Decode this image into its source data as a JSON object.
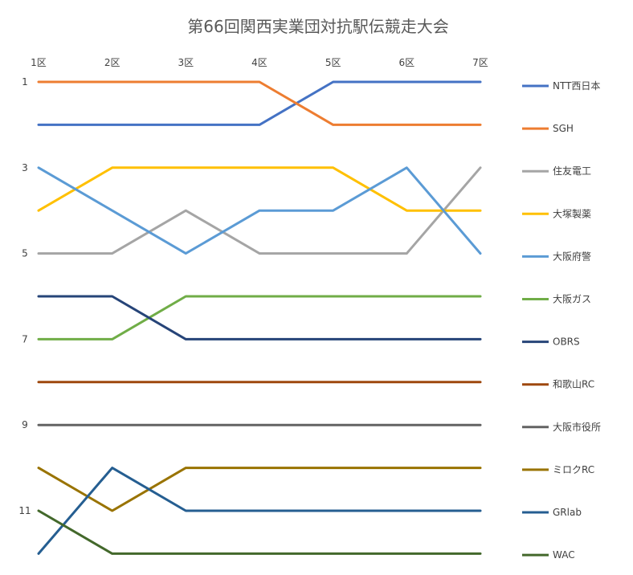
{
  "chart_data": {
    "type": "line",
    "title": "第66回関西実業団対抗駅伝競走大会",
    "categories": [
      "1区",
      "2区",
      "3区",
      "4区",
      "5区",
      "6区",
      "7区"
    ],
    "y_ticks": [
      "1",
      "3",
      "5",
      "7",
      "9",
      "11"
    ],
    "ylim": [
      12,
      1
    ],
    "y_reversed": true,
    "x_axis_position": "top",
    "grid": false,
    "legend_position": "right",
    "series": [
      {
        "name": "NTT西日本",
        "color": "#4472C4",
        "values": [
          2,
          2,
          2,
          2,
          1,
          1,
          1
        ]
      },
      {
        "name": "SGH",
        "color": "#ED7D31",
        "values": [
          1,
          1,
          1,
          1,
          2,
          2,
          2
        ]
      },
      {
        "name": "住友電工",
        "color": "#A5A5A5",
        "values": [
          5,
          5,
          4,
          5,
          5,
          5,
          3
        ]
      },
      {
        "name": "大塚製薬",
        "color": "#FFC000",
        "values": [
          4,
          3,
          3,
          3,
          3,
          4,
          4
        ]
      },
      {
        "name": "大阪府警",
        "color": "#5B9BD5",
        "values": [
          3,
          4,
          5,
          4,
          4,
          3,
          5
        ]
      },
      {
        "name": "大阪ガス",
        "color": "#70AD47",
        "values": [
          7,
          7,
          6,
          6,
          6,
          6,
          6
        ]
      },
      {
        "name": "OBRS",
        "color": "#264478",
        "values": [
          6,
          6,
          7,
          7,
          7,
          7,
          7
        ]
      },
      {
        "name": "和歌山RC",
        "color": "#9E480E",
        "values": [
          8,
          8,
          8,
          8,
          8,
          8,
          8
        ]
      },
      {
        "name": "大阪市役所",
        "color": "#636363",
        "values": [
          9,
          9,
          9,
          9,
          9,
          9,
          9
        ]
      },
      {
        "name": "ミロクRC",
        "color": "#997300",
        "values": [
          10,
          11,
          10,
          10,
          10,
          10,
          10
        ]
      },
      {
        "name": "GRlab",
        "color": "#255E91",
        "values": [
          12,
          10,
          11,
          11,
          11,
          11,
          11
        ]
      },
      {
        "name": "WAC",
        "color": "#43682B",
        "values": [
          11,
          12,
          12,
          12,
          12,
          12,
          12
        ]
      }
    ]
  }
}
